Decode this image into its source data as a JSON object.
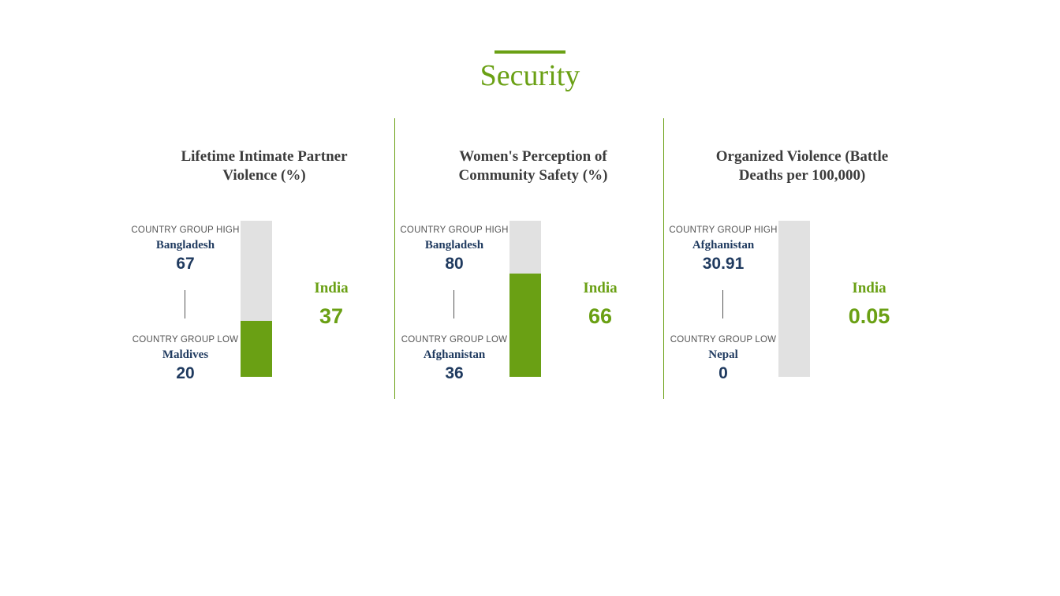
{
  "section": {
    "title": "Security",
    "accent_color": "#6aa014",
    "dark_text_color": "#1f3a5f"
  },
  "panels": [
    {
      "title_line1": "Lifetime Intimate Partner",
      "title_line2": "Violence (%)",
      "high": {
        "label": "COUNTRY GROUP HIGH",
        "country": "Bangladesh",
        "value": "67"
      },
      "low": {
        "label": "COUNTRY GROUP LOW",
        "country": "Maldives",
        "value": "20"
      },
      "india": {
        "name": "India",
        "value": "37"
      },
      "bar_fill_fraction": 0.36
    },
    {
      "title_line1": "Women's Perception of",
      "title_line2": "Community Safety (%)",
      "high": {
        "label": "COUNTRY GROUP HIGH",
        "country": "Bangladesh",
        "value": "80"
      },
      "low": {
        "label": "COUNTRY GROUP LOW",
        "country": "Afghanistan",
        "value": "36"
      },
      "india": {
        "name": "India",
        "value": "66"
      },
      "bar_fill_fraction": 0.66
    },
    {
      "title_line1": "Organized Violence (Battle",
      "title_line2": "Deaths per 100,000)",
      "high": {
        "label": "COUNTRY GROUP HIGH",
        "country": "Afghanistan",
        "value": "30.91"
      },
      "low": {
        "label": "COUNTRY GROUP LOW",
        "country": "Nepal",
        "value": "0"
      },
      "india": {
        "name": "India",
        "value": "0.05"
      },
      "bar_fill_fraction": 0.0
    }
  ]
}
